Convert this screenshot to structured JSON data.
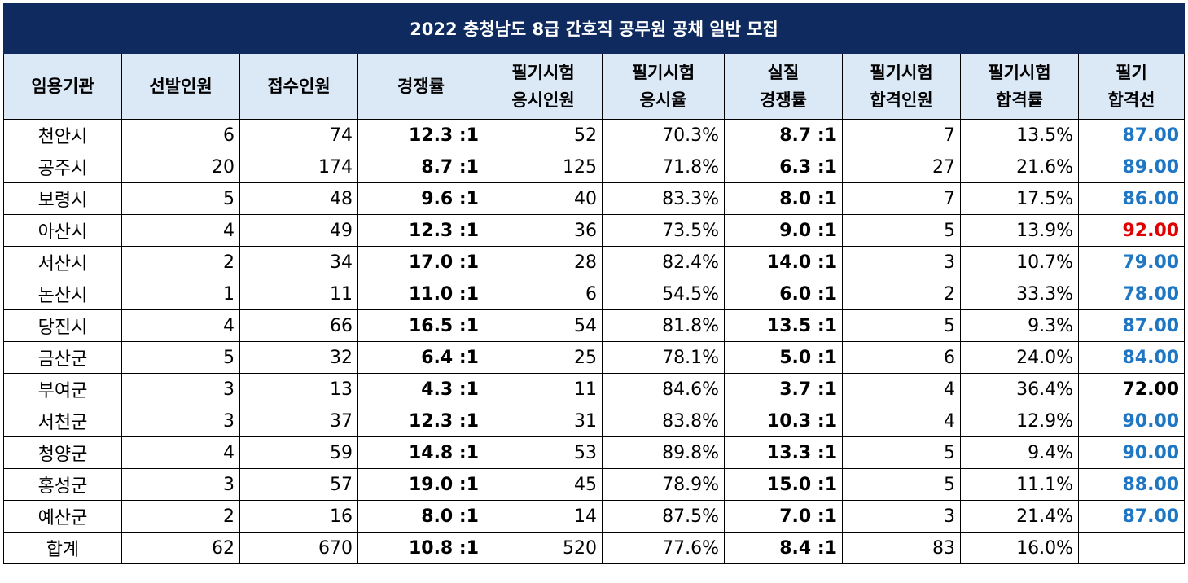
{
  "title": "2022 충청남도 8급 간호직 공무원 공채 일반 모집",
  "headers": [
    [
      "임용기관"
    ],
    [
      "선발인원"
    ],
    [
      "접수인원"
    ],
    [
      "경쟁률"
    ],
    [
      "필기시험",
      "응시인원"
    ],
    [
      "필기시험",
      "응시율"
    ],
    [
      "실질",
      "경쟁률"
    ],
    [
      "필기시험",
      "합격인원"
    ],
    [
      "필기시험",
      "합격률"
    ],
    [
      "필기",
      "합격선"
    ]
  ],
  "colors": {
    "header_bg": "#0e2a5e",
    "subheader_bg": "#dbe8f6",
    "cutoff_blue": "#1f77c4",
    "cutoff_red": "#e00000",
    "cutoff_black": "#000000"
  },
  "rows": [
    {
      "name": "천안시",
      "selected": "6",
      "applicants": "74",
      "ratio": "12.3 :1",
      "takers": "52",
      "take_rate": "70.3%",
      "real_ratio": "8.7 :1",
      "passed": "7",
      "pass_rate": "13.5%",
      "cutoff": "87.00",
      "cutoff_color": "#1f77c4"
    },
    {
      "name": "공주시",
      "selected": "20",
      "applicants": "174",
      "ratio": "8.7 :1",
      "takers": "125",
      "take_rate": "71.8%",
      "real_ratio": "6.3 :1",
      "passed": "27",
      "pass_rate": "21.6%",
      "cutoff": "89.00",
      "cutoff_color": "#1f77c4"
    },
    {
      "name": "보령시",
      "selected": "5",
      "applicants": "48",
      "ratio": "9.6 :1",
      "takers": "40",
      "take_rate": "83.3%",
      "real_ratio": "8.0 :1",
      "passed": "7",
      "pass_rate": "17.5%",
      "cutoff": "86.00",
      "cutoff_color": "#1f77c4"
    },
    {
      "name": "아산시",
      "selected": "4",
      "applicants": "49",
      "ratio": "12.3 :1",
      "takers": "36",
      "take_rate": "73.5%",
      "real_ratio": "9.0 :1",
      "passed": "5",
      "pass_rate": "13.9%",
      "cutoff": "92.00",
      "cutoff_color": "#e00000"
    },
    {
      "name": "서산시",
      "selected": "2",
      "applicants": "34",
      "ratio": "17.0 :1",
      "takers": "28",
      "take_rate": "82.4%",
      "real_ratio": "14.0 :1",
      "passed": "3",
      "pass_rate": "10.7%",
      "cutoff": "79.00",
      "cutoff_color": "#1f77c4"
    },
    {
      "name": "논산시",
      "selected": "1",
      "applicants": "11",
      "ratio": "11.0 :1",
      "takers": "6",
      "take_rate": "54.5%",
      "real_ratio": "6.0 :1",
      "passed": "2",
      "pass_rate": "33.3%",
      "cutoff": "78.00",
      "cutoff_color": "#1f77c4"
    },
    {
      "name": "당진시",
      "selected": "4",
      "applicants": "66",
      "ratio": "16.5 :1",
      "takers": "54",
      "take_rate": "81.8%",
      "real_ratio": "13.5 :1",
      "passed": "5",
      "pass_rate": "9.3%",
      "cutoff": "87.00",
      "cutoff_color": "#1f77c4"
    },
    {
      "name": "금산군",
      "selected": "5",
      "applicants": "32",
      "ratio": "6.4 :1",
      "takers": "25",
      "take_rate": "78.1%",
      "real_ratio": "5.0 :1",
      "passed": "6",
      "pass_rate": "24.0%",
      "cutoff": "84.00",
      "cutoff_color": "#1f77c4"
    },
    {
      "name": "부여군",
      "selected": "3",
      "applicants": "13",
      "ratio": "4.3 :1",
      "takers": "11",
      "take_rate": "84.6%",
      "real_ratio": "3.7 :1",
      "passed": "4",
      "pass_rate": "36.4%",
      "cutoff": "72.00",
      "cutoff_color": "#000000"
    },
    {
      "name": "서천군",
      "selected": "3",
      "applicants": "37",
      "ratio": "12.3 :1",
      "takers": "31",
      "take_rate": "83.8%",
      "real_ratio": "10.3 :1",
      "passed": "4",
      "pass_rate": "12.9%",
      "cutoff": "90.00",
      "cutoff_color": "#1f77c4"
    },
    {
      "name": "청양군",
      "selected": "4",
      "applicants": "59",
      "ratio": "14.8 :1",
      "takers": "53",
      "take_rate": "89.8%",
      "real_ratio": "13.3 :1",
      "passed": "5",
      "pass_rate": "9.4%",
      "cutoff": "90.00",
      "cutoff_color": "#1f77c4"
    },
    {
      "name": "홍성군",
      "selected": "3",
      "applicants": "57",
      "ratio": "19.0 :1",
      "takers": "45",
      "take_rate": "78.9%",
      "real_ratio": "15.0 :1",
      "passed": "5",
      "pass_rate": "11.1%",
      "cutoff": "88.00",
      "cutoff_color": "#1f77c4"
    },
    {
      "name": "예산군",
      "selected": "2",
      "applicants": "16",
      "ratio": "8.0 :1",
      "takers": "14",
      "take_rate": "87.5%",
      "real_ratio": "7.0 :1",
      "passed": "3",
      "pass_rate": "21.4%",
      "cutoff": "87.00",
      "cutoff_color": "#1f77c4"
    },
    {
      "name": "합계",
      "selected": "62",
      "applicants": "670",
      "ratio": "10.8 :1",
      "takers": "520",
      "take_rate": "77.6%",
      "real_ratio": "8.4 :1",
      "passed": "83",
      "pass_rate": "16.0%",
      "cutoff": "",
      "cutoff_color": "#000000"
    }
  ]
}
